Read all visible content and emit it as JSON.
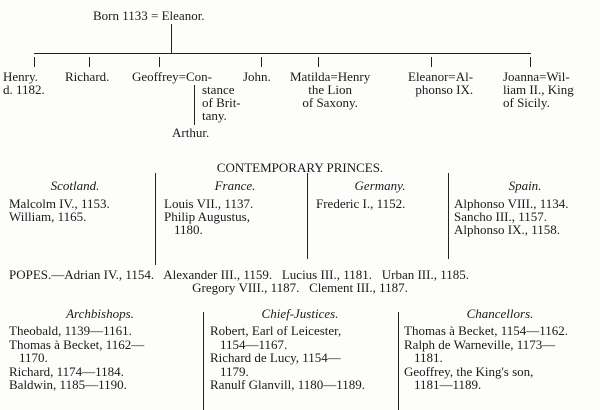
{
  "tree": {
    "parents": "Born 1133 = Eleanor.",
    "children": [
      {
        "lines": [
          "Henry.",
          "d. 1182."
        ]
      },
      {
        "lines": [
          "Richard."
        ]
      },
      {
        "lines": [
          "Geoffrey=Con-"
        ]
      },
      {
        "lines": [
          "John."
        ]
      },
      {
        "lines": [
          "Matilda=Henry",
          "the Lion",
          "of Saxony."
        ]
      },
      {
        "lines": [
          "Eleanor=Al-",
          "phonso IX."
        ]
      },
      {
        "lines": [
          "Joanna=Wil-",
          "liam II., King",
          "of Sicily."
        ]
      }
    ],
    "constance_cont": [
      "stance",
      "of Brit-",
      "tany."
    ],
    "grandchild": "Arthur."
  },
  "princes": {
    "title": "CONTEMPORARY PRINCES.",
    "columns": [
      {
        "header": "Scotland.",
        "entries": [
          "Malcolm IV., 1153.",
          "William, 1165."
        ]
      },
      {
        "header": "France.",
        "entries": [
          "Louis VII., 1137.",
          "Philip Augustus,",
          "1180."
        ]
      },
      {
        "header": "Germany.",
        "entries": [
          "Frederic I., 1152."
        ]
      },
      {
        "header": "Spain.",
        "entries": [
          "Alphonso VIII., 1134.",
          "Sancho III., 1157.",
          "Alphonso IX., 1158."
        ]
      }
    ]
  },
  "popes": {
    "line1": "POPES.—Adrian IV., 1154.   Alexander III., 1159.   Lucius III., 1181.   Urban III., 1185.",
    "line2": "Gregory VIII., 1187.   Clement III., 1187."
  },
  "officers": [
    {
      "header": "Archbishops.",
      "entries": [
        "Theobald, 1139—1161.",
        "Thomas à Becket, 1162—",
        "1170.",
        "Richard, 1174—1184.",
        "Baldwin, 1185—1190."
      ]
    },
    {
      "header": "Chief-Justices.",
      "entries": [
        "Robert, Earl of Leicester,",
        "1154—1167.",
        "Richard de Lucy, 1154—",
        "1179.",
        "Ranulf Glanvill, 1180—1189."
      ]
    },
    {
      "header": "Chancellors.",
      "entries": [
        "Thomas à Becket, 1154—1162.",
        "Ralph de Warneville, 1173—",
        "1181.",
        "Geoffrey, the King's son,",
        "1181—1189."
      ]
    }
  ]
}
